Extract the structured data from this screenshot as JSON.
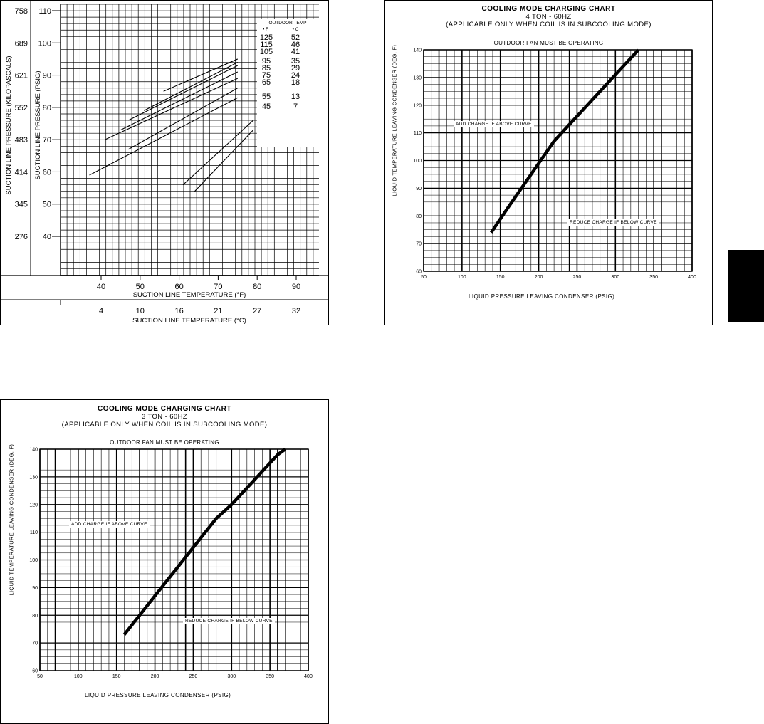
{
  "chart_data": [
    {
      "type": "line",
      "id": "suction",
      "title": "",
      "xlabel": "SUCTION LINE TEMPERATURE (°F)",
      "x2label": "SUCTION LINE TEMPERATURE (°C)",
      "ylabel": "SUCTION LINE PRESSURE (PSIG)",
      "y2label": "SUCTION LINE PRESSURE (KILOPASCALS)",
      "xlim": [
        28,
        94
      ],
      "ylim": [
        30,
        112
      ],
      "grid": true,
      "x_ticks": [
        "40",
        "50",
        "60",
        "70",
        "80",
        "90"
      ],
      "x_tick_values": [
        40,
        50,
        60,
        70,
        80,
        90
      ],
      "x2_ticks": [
        "4",
        "10",
        "16",
        "21",
        "27",
        "32"
      ],
      "y_ticks": [
        "110",
        "100",
        "90",
        "80",
        "70",
        "60",
        "50",
        "40"
      ],
      "y_tick_values": [
        110,
        100,
        90,
        80,
        70,
        60,
        50,
        40
      ],
      "y2_ticks": [
        "758",
        "689",
        "621",
        "552",
        "483",
        "414",
        "345",
        "276"
      ],
      "legend_title": "OUTDOOR TEMP",
      "legend_units": [
        "• F",
        "• C"
      ],
      "series": [
        {
          "name": "125 / 52",
          "f": "125",
          "c": "52",
          "x": [
            56,
            75
          ],
          "y": [
            85,
            95
          ]
        },
        {
          "name": "115 / 46",
          "f": "115",
          "c": "46",
          "x": [
            51,
            75
          ],
          "y": [
            79,
            94
          ]
        },
        {
          "name": "105 / 41",
          "f": "105",
          "c": "41",
          "x": [
            47,
            75
          ],
          "y": [
            76,
            93
          ]
        },
        {
          "name": "95 / 35",
          "f": "95",
          "c": "35",
          "x": [
            45,
            75
          ],
          "y": [
            73,
            91
          ]
        },
        {
          "name": "85 / 29",
          "f": "85",
          "c": "29",
          "x": [
            41,
            75
          ],
          "y": [
            70,
            89
          ]
        },
        {
          "name": "75 / 24",
          "f": "75",
          "c": "24",
          "x": [
            47,
            75
          ],
          "y": [
            67,
            86
          ]
        },
        {
          "name": "65 / 18",
          "f": "65",
          "c": "18",
          "x": [
            37,
            75
          ],
          "y": [
            59,
            83
          ]
        },
        {
          "name": "55 / 13",
          "f": "55",
          "c": "13",
          "x": [
            61,
            79
          ],
          "y": [
            56,
            76
          ]
        },
        {
          "name": "45 / 7",
          "f": "45",
          "c": "7",
          "x": [
            64,
            79
          ],
          "y": [
            54,
            73
          ]
        }
      ]
    },
    {
      "type": "line",
      "id": "ton4",
      "title": "COOLING MODE CHARGING CHART",
      "subtitle": "4 TON - 60HZ",
      "note": "(APPLICABLE ONLY WHEN COIL IS IN SUBCOOLING MODE)",
      "header": "OUTDOOR FAN MUST BE OPERATING",
      "xlabel": "LIQUID PRESSURE LEAVING CONDENSER (PSIG)",
      "ylabel": "LIQUID TEMPERATURE LEAVING CONDENSER (DEG. F)",
      "xlim": [
        50,
        400
      ],
      "ylim": [
        60,
        140
      ],
      "grid": true,
      "x_ticks": [
        "50",
        "100",
        "150",
        "200",
        "250",
        "300",
        "350",
        "400"
      ],
      "y_ticks": [
        "60",
        "70",
        "80",
        "90",
        "100",
        "110",
        "120",
        "130",
        "140"
      ],
      "region_above": "ADD CHARGE IF ABOVE CURVE",
      "region_below": "REDUCE CHARGE IF BELOW CURVE",
      "series": [
        {
          "x": [
            138,
            160,
            180,
            200,
            220,
            240,
            260,
            280,
            300,
            320,
            330
          ],
          "y": [
            74,
            83,
            91,
            99,
            107,
            113,
            119,
            125,
            131,
            137,
            140
          ]
        }
      ]
    },
    {
      "type": "line",
      "id": "ton3",
      "title": "COOLING MODE CHARGING CHART",
      "subtitle": "3 TON - 60HZ",
      "note": "(APPLICABLE ONLY WHEN COIL IS IN SUBCOOLING MODE)",
      "header": "OUTDOOR FAN MUST BE OPERATING",
      "xlabel": "LIQUID PRESSURE LEAVING CONDENSER (PSIG)",
      "ylabel": "LIQUID TEMPERATURE LEAVING CONDENSER (DEG. F)",
      "xlim": [
        50,
        400
      ],
      "ylim": [
        60,
        140
      ],
      "grid": true,
      "x_ticks": [
        "50",
        "100",
        "150",
        "200",
        "250",
        "300",
        "350",
        "400"
      ],
      "y_ticks": [
        "60",
        "70",
        "80",
        "90",
        "100",
        "110",
        "120",
        "130",
        "140"
      ],
      "region_above": "ADD CHARGE IF ABOVE CURVE",
      "region_below": "REDUCE CHARGE IF BELOW CURVE",
      "series": [
        {
          "x": [
            160,
            180,
            200,
            220,
            240,
            260,
            280,
            300,
            320,
            340,
            360,
            370
          ],
          "y": [
            73,
            80,
            87,
            94,
            101,
            108,
            115,
            120,
            126,
            132,
            138,
            140
          ]
        }
      ]
    }
  ]
}
